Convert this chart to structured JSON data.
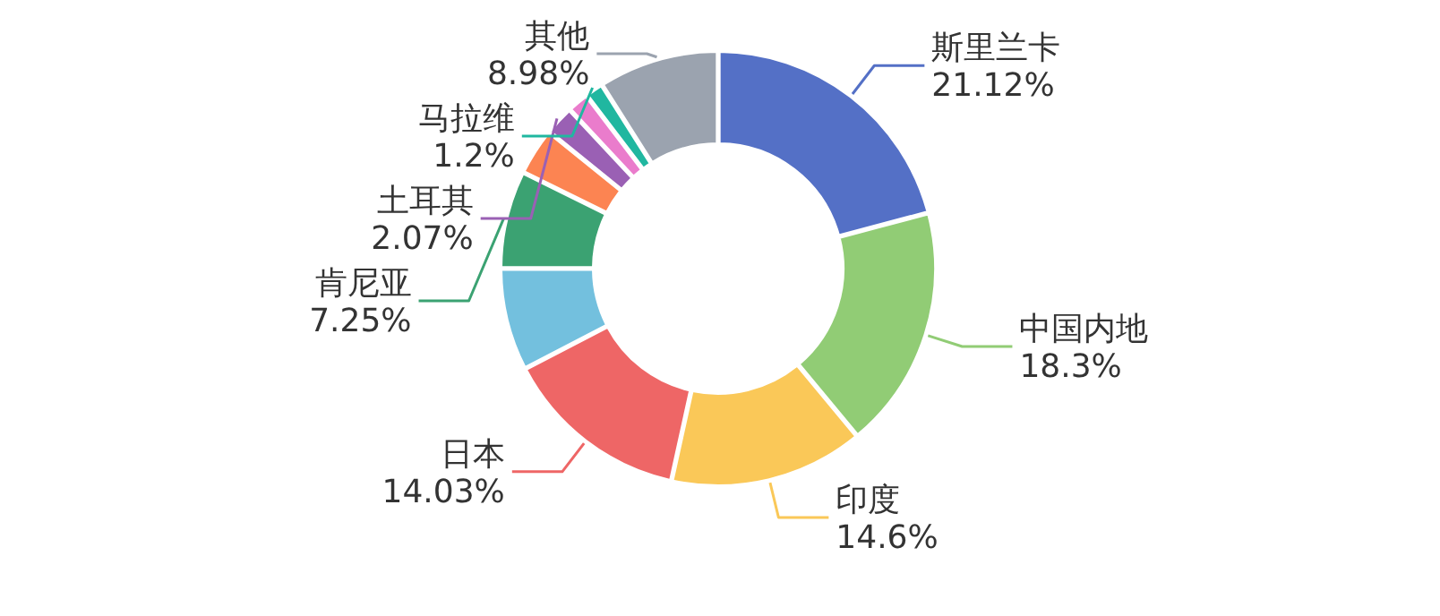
{
  "chart_data": {
    "type": "donut",
    "categories": [
      "斯里兰卡",
      "中国内地",
      "印度",
      "日本",
      null,
      "肯尼亚",
      null,
      "土耳其",
      null,
      "马拉维",
      "其他"
    ],
    "values": [
      21.12,
      18.3,
      14.6,
      14.03,
      7.6,
      7.25,
      3.4,
      2.07,
      1.45,
      1.2,
      8.98
    ],
    "colors": [
      "#5470c6",
      "#91cc75",
      "#fac858",
      "#ee6666",
      "#73c0de",
      "#3ba272",
      "#fc8452",
      "#9a60b4",
      "#ea7ccc",
      "#20b7a0",
      "#9ba3af"
    ],
    "value_labels": [
      "21.12%",
      "18.3%",
      "14.6%",
      "14.03%",
      null,
      "7.25%",
      null,
      "2.07%",
      null,
      "1.2%",
      "8.98%"
    ]
  }
}
